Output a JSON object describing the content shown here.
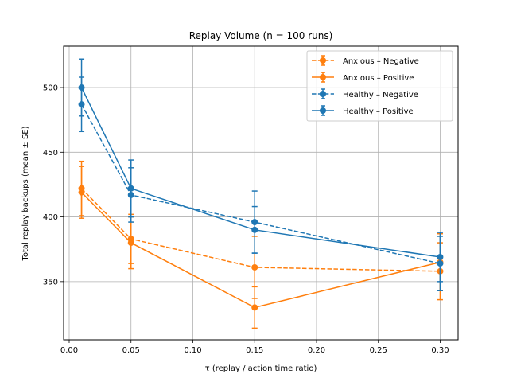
{
  "chart_data": {
    "type": "line",
    "title": "Replay Volume  (n = 100 runs)",
    "xlabel": "τ  (replay / action time ratio)",
    "ylabel": "Total replay backups  (mean ± SE)",
    "xlim": [
      -0.0045,
      0.3145
    ],
    "ylim": [
      305,
      532
    ],
    "x_ticks": [
      0.0,
      0.05,
      0.1,
      0.15,
      0.2,
      0.25,
      0.3
    ],
    "x_tick_labels": [
      "0.00",
      "0.05",
      "0.10",
      "0.15",
      "0.20",
      "0.25",
      "0.30"
    ],
    "y_ticks": [
      350,
      400,
      450,
      500
    ],
    "y_tick_labels": [
      "350",
      "400",
      "450",
      "500"
    ],
    "grid": true,
    "legend_position": "top-right",
    "x": [
      0.01,
      0.05,
      0.15,
      0.3
    ],
    "series": [
      {
        "name": "Anxious – Negative",
        "color": "#ff7f0e",
        "dashed": true,
        "values": [
          422,
          383,
          361,
          358
        ],
        "errors": [
          21,
          19,
          24,
          22
        ]
      },
      {
        "name": "Anxious – Positive",
        "color": "#ff7f0e",
        "dashed": false,
        "values": [
          419,
          380,
          330,
          365
        ],
        "errors": [
          20,
          20,
          16,
          22
        ]
      },
      {
        "name": "Healthy – Negative",
        "color": "#1f77b4",
        "dashed": true,
        "values": [
          487,
          417,
          396,
          364
        ],
        "errors": [
          21,
          21,
          24,
          21
        ]
      },
      {
        "name": "Healthy – Positive",
        "color": "#1f77b4",
        "dashed": false,
        "values": [
          500,
          422,
          390,
          369
        ],
        "errors": [
          22,
          22,
          18,
          19
        ]
      }
    ]
  }
}
